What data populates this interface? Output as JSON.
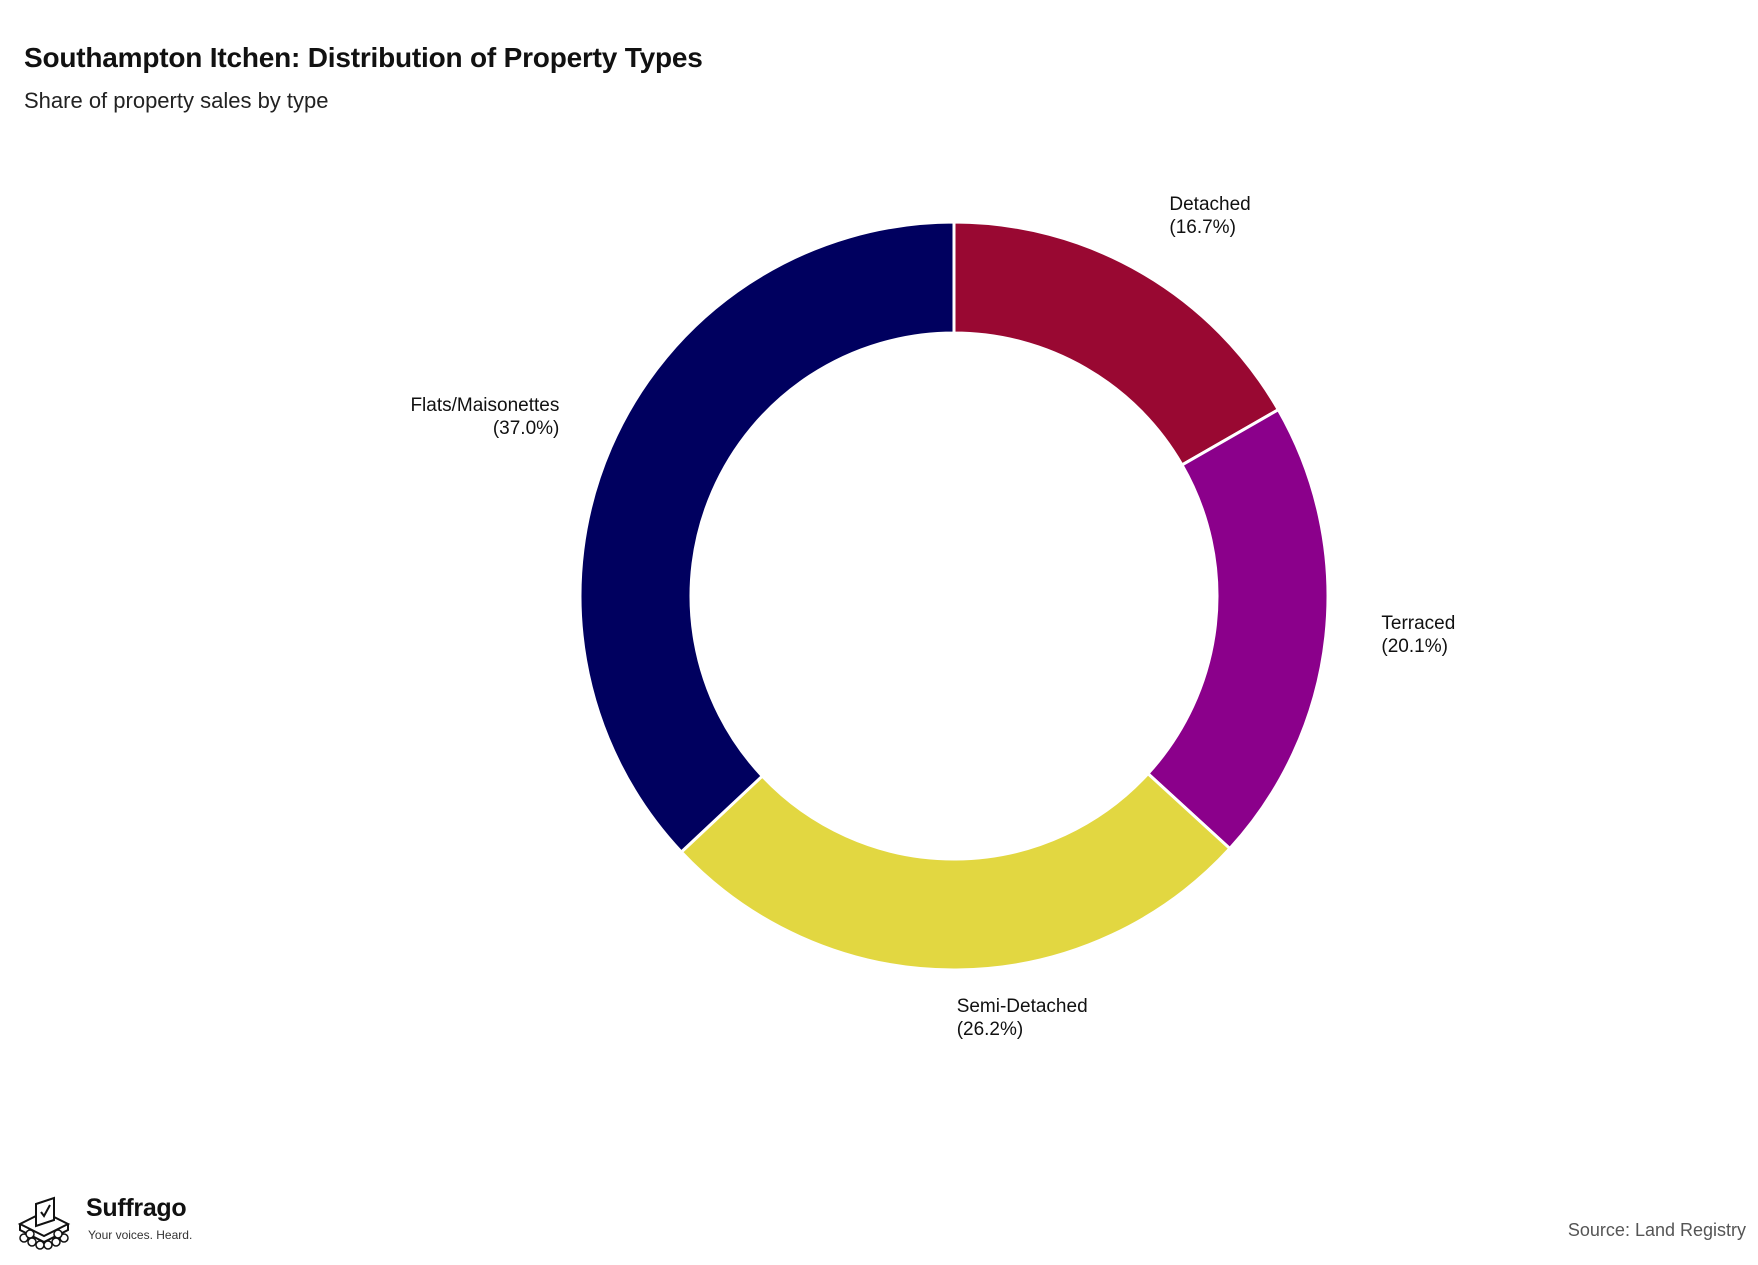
{
  "title": "Southampton Itchen: Distribution of Property Types",
  "subtitle": "Share of property sales by type",
  "source": "Source: Land Registry",
  "logo": {
    "name": "Suffrago",
    "tagline": "Your voices. Heard."
  },
  "chart_data": {
    "type": "pie",
    "variant": "donut",
    "slices": [
      {
        "label": "Detached",
        "percent_label": "(16.7%)",
        "value": 16.7,
        "color": "#990832"
      },
      {
        "label": "Terraced",
        "percent_label": "(20.1%)",
        "value": 20.1,
        "color": "#8B008B"
      },
      {
        "label": "Semi-Detached",
        "percent_label": "(26.2%)",
        "value": 26.2,
        "color": "#E2D741"
      },
      {
        "label": "Flats/Maisonettes",
        "percent_label": "(37.0%)",
        "value": 37.0,
        "color": "#00005F"
      }
    ],
    "start_angle": "top",
    "direction": "clockwise",
    "legend": "none"
  }
}
